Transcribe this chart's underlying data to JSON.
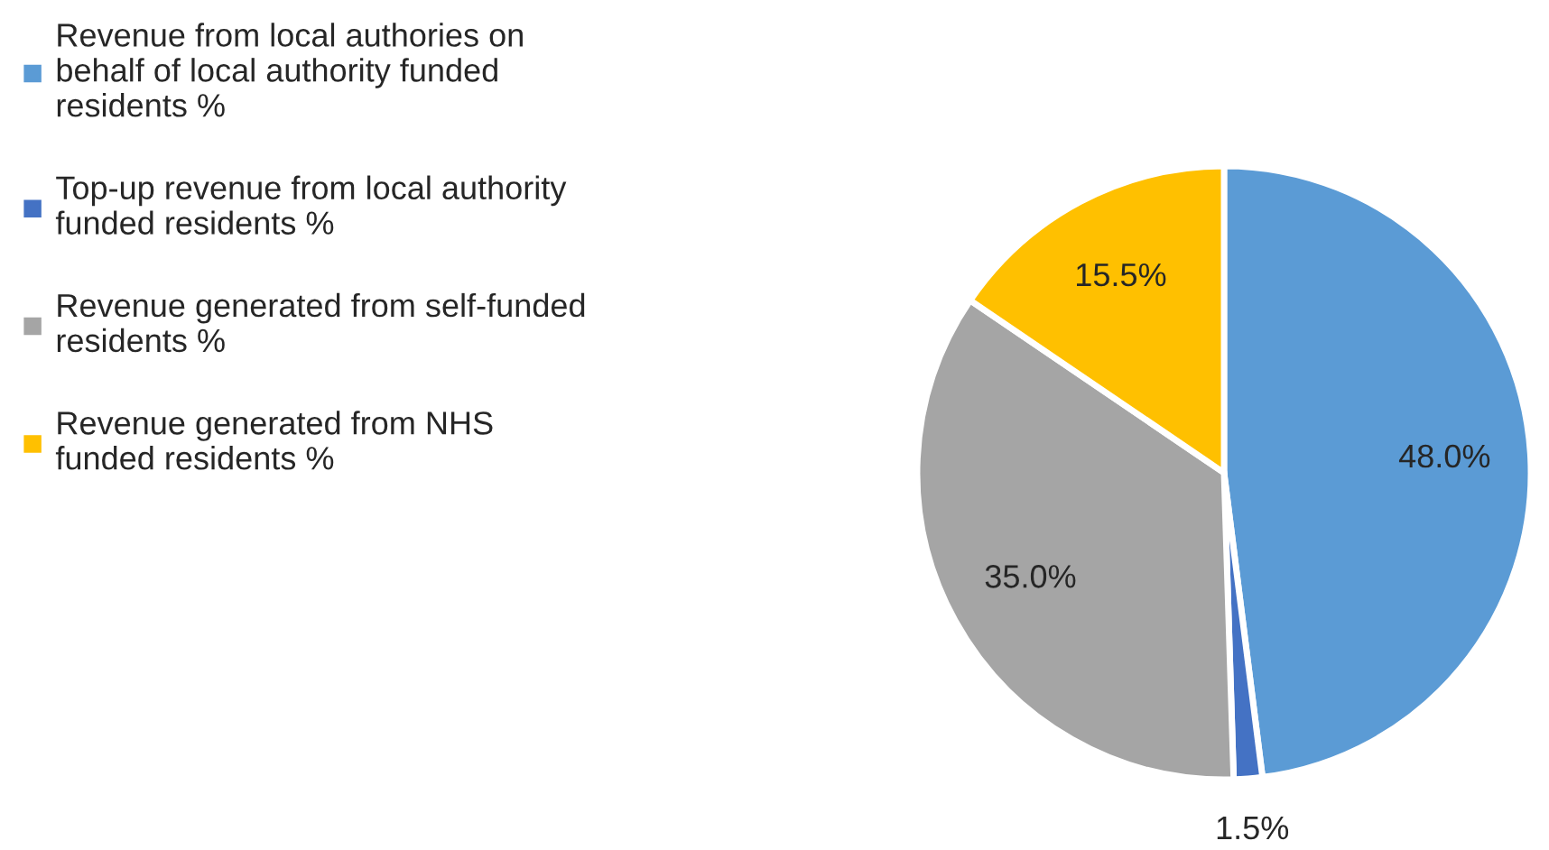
{
  "chart_data": {
    "type": "pie",
    "categories": [
      "Revenue from local authories on\nbehalf of local authority funded\nresidents %",
      "Top-up revenue from local authority\nfunded residents %",
      "Revenue generated from self-funded\nresidents %",
      "Revenue generated from NHS\nfunded residents %"
    ],
    "values": [
      48.0,
      1.5,
      35.0,
      15.5
    ],
    "value_labels": [
      "48.0%",
      "1.5%",
      "35.0%",
      "15.5%"
    ],
    "colors": [
      "#5b9bd5",
      "#4472c4",
      "#a5a5a5",
      "#ffc000"
    ],
    "legend": "left"
  }
}
